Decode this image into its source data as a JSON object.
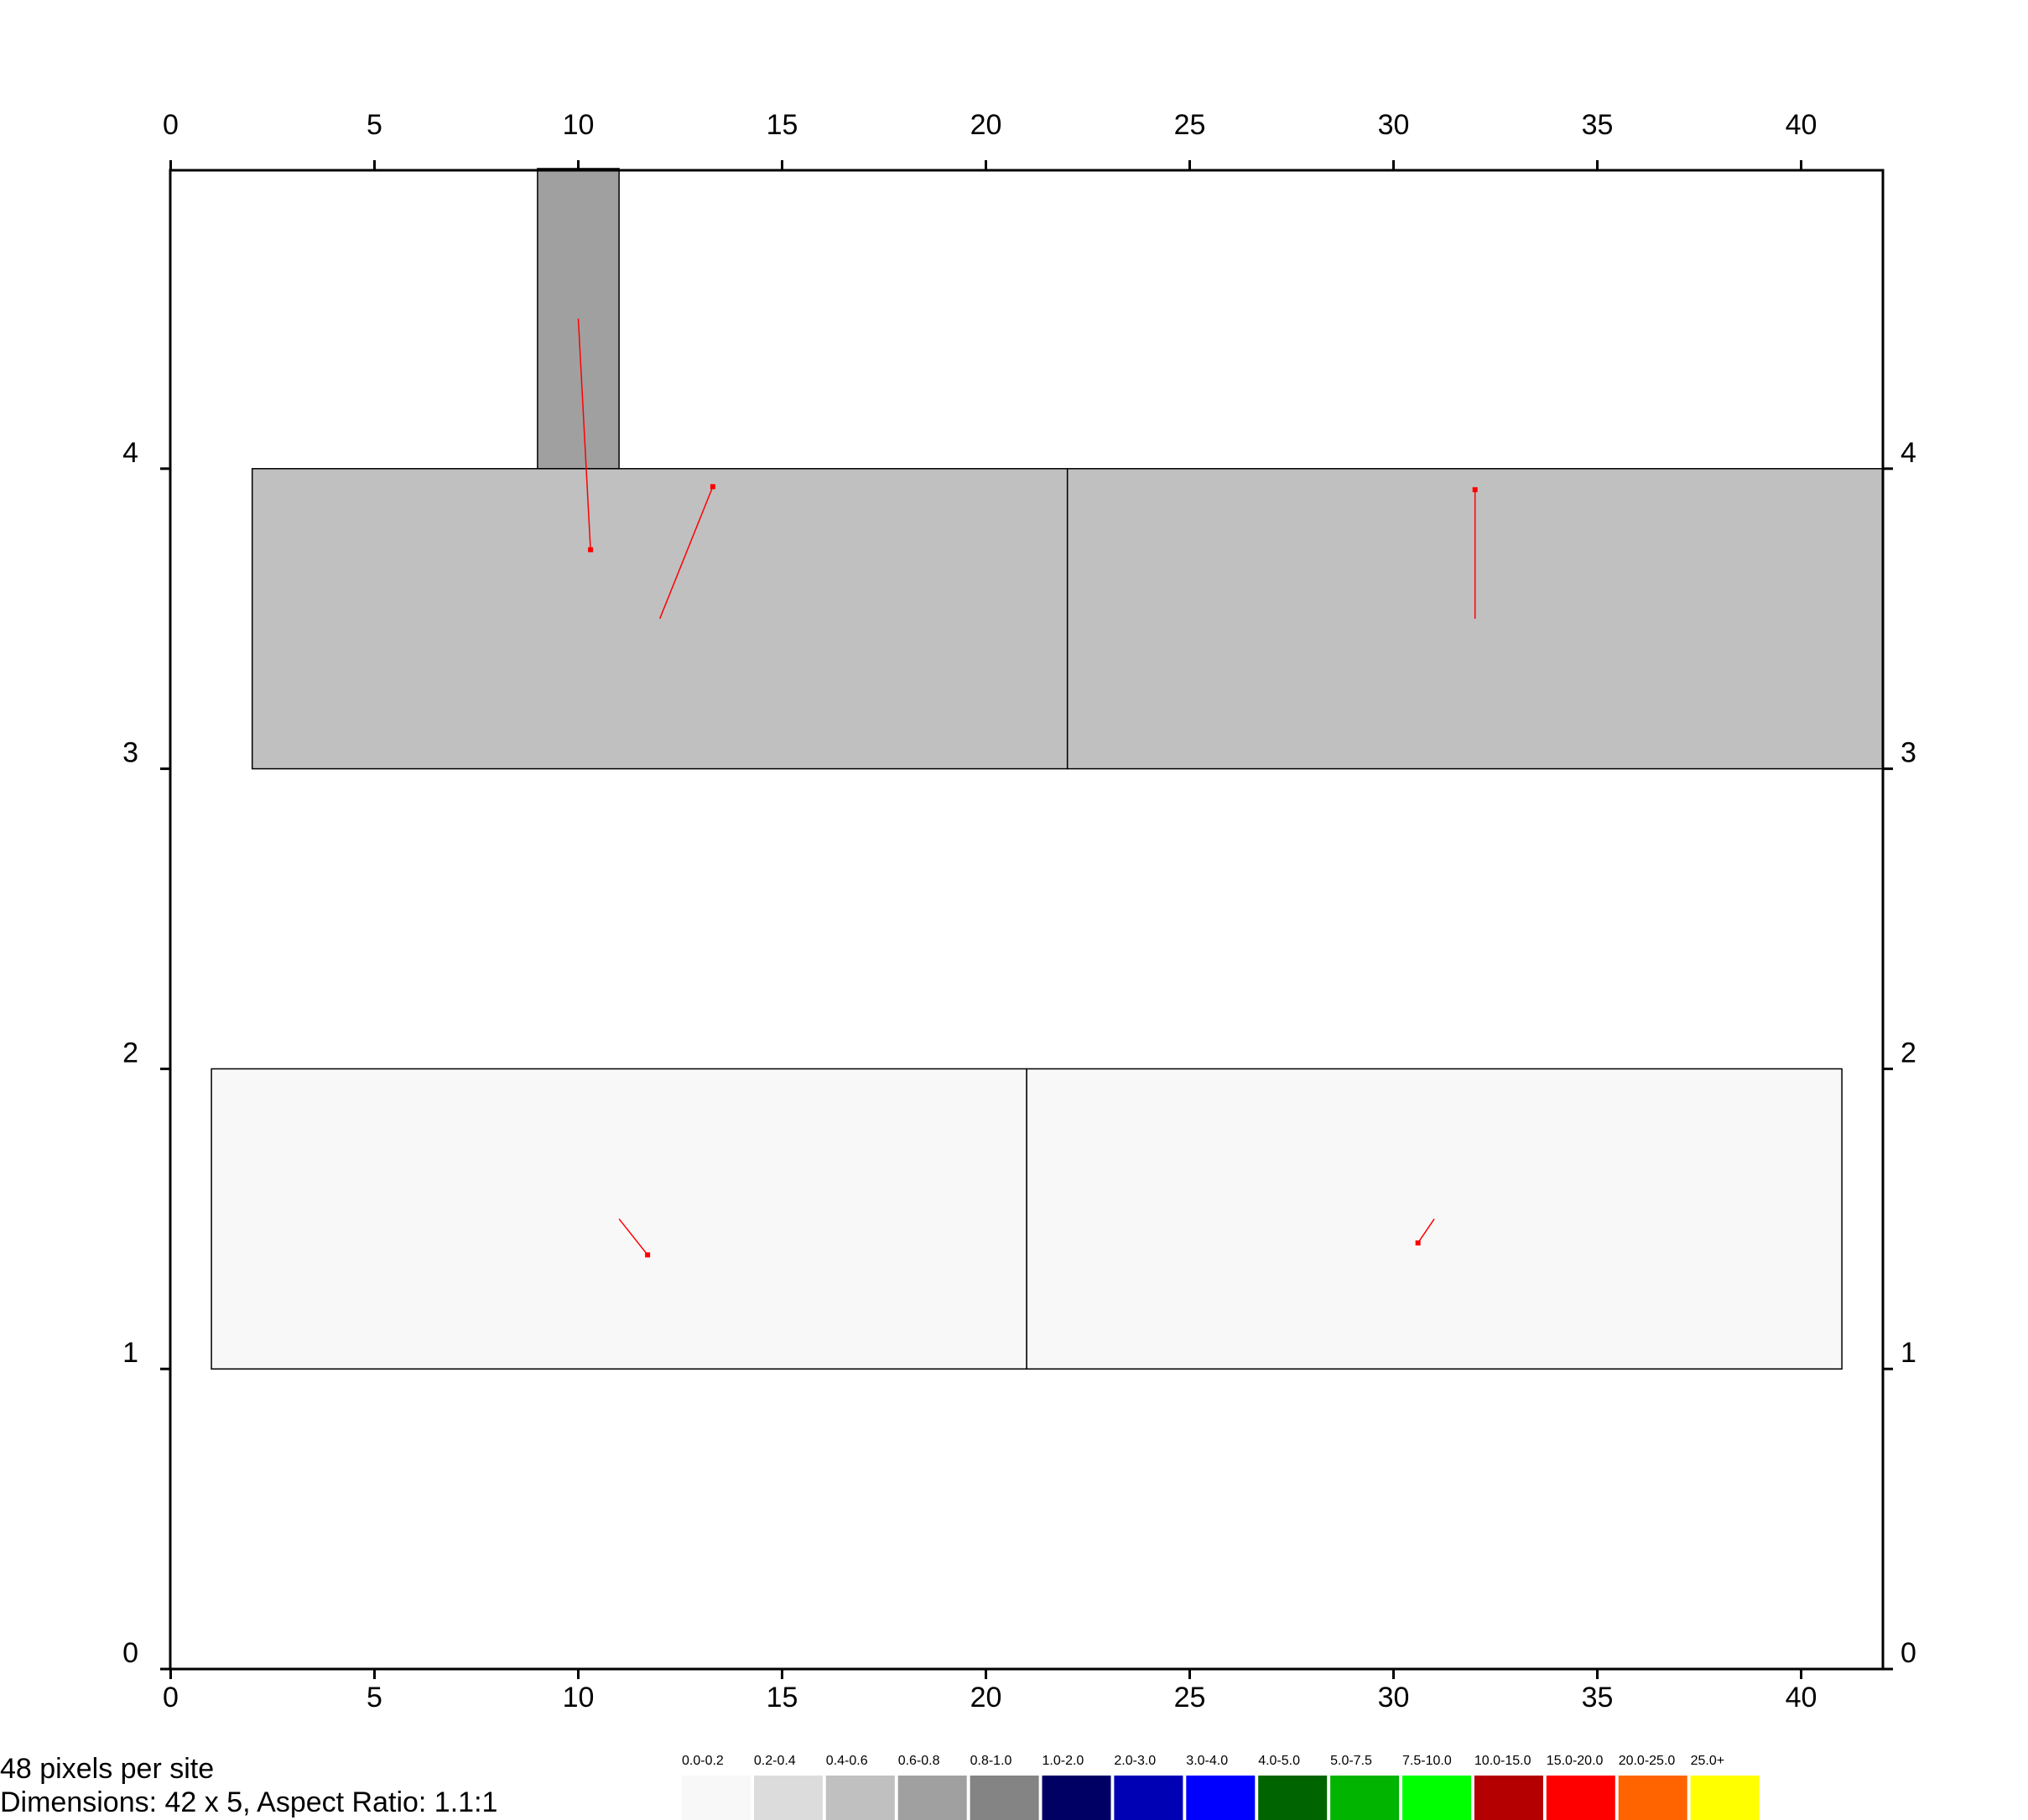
{
  "footer": {
    "pixels_per_site": "48 pixels per site",
    "dimensions": "Dimensions: 42 x 5, Aspect Ratio: 1.1:1"
  },
  "chart_data": {
    "type": "heatmap",
    "title": "",
    "xlabel": "",
    "ylabel": "",
    "xlim": [
      0,
      42
    ],
    "ylim": [
      0,
      5
    ],
    "x_ticks": [
      0,
      5,
      10,
      15,
      20,
      25,
      30,
      35,
      40
    ],
    "y_ticks": [
      0,
      1,
      2,
      3,
      4
    ],
    "grid": false,
    "cells": [
      {
        "x0": 9,
        "x1": 11,
        "y0": 4,
        "y1": 5,
        "bin": "0.6-0.8",
        "color": "#a0a0a0"
      },
      {
        "x0": 2,
        "x1": 22,
        "y0": 3,
        "y1": 4,
        "bin": "0.4-0.6",
        "color": "#c0c0c0"
      },
      {
        "x0": 22,
        "x1": 42,
        "y0": 3,
        "y1": 4,
        "bin": "0.4-0.6",
        "color": "#c0c0c0"
      },
      {
        "x0": 1,
        "x1": 21,
        "y0": 1,
        "y1": 2,
        "bin": "0.0-0.2",
        "color": "#f8f8f8"
      },
      {
        "x0": 21,
        "x1": 41,
        "y0": 1,
        "y1": 2,
        "bin": "0.0-0.2",
        "color": "#f8f8f8"
      }
    ],
    "vectors": [
      {
        "x0": 10.0,
        "y0": 4.5,
        "x1": 10.3,
        "y1": 3.73
      },
      {
        "x0": 12.0,
        "y0": 3.5,
        "x1": 13.3,
        "y1": 3.94
      },
      {
        "x0": 32.0,
        "y0": 3.5,
        "x1": 32.0,
        "y1": 3.93
      },
      {
        "x0": 11.0,
        "y0": 1.5,
        "x1": 11.7,
        "y1": 1.38
      },
      {
        "x0": 31.0,
        "y0": 1.5,
        "x1": 30.6,
        "y1": 1.42
      }
    ],
    "vector_color": "#ff0000",
    "legend": [
      {
        "label": "0.0-0.2",
        "color": "#f8f8f8"
      },
      {
        "label": "0.2-0.4",
        "color": "#dcdcdc"
      },
      {
        "label": "0.4-0.6",
        "color": "#c0c0c0"
      },
      {
        "label": "0.6-0.8",
        "color": "#a0a0a0"
      },
      {
        "label": "0.8-1.0",
        "color": "#848484"
      },
      {
        "label": "1.0-2.0",
        "color": "#000064"
      },
      {
        "label": "2.0-3.0",
        "color": "#0000b4"
      },
      {
        "label": "3.0-4.0",
        "color": "#0000ff"
      },
      {
        "label": "4.0-5.0",
        "color": "#006400"
      },
      {
        "label": "5.0-7.5",
        "color": "#00b400"
      },
      {
        "label": "7.5-10.0",
        "color": "#00ff00"
      },
      {
        "label": "10.0-15.0",
        "color": "#b40000"
      },
      {
        "label": "15.0-20.0",
        "color": "#ff0000"
      },
      {
        "label": "20.0-25.0",
        "color": "#ff6400"
      },
      {
        "label": "25.0+",
        "color": "#ffff00"
      }
    ],
    "legend_placement": "bottom"
  }
}
